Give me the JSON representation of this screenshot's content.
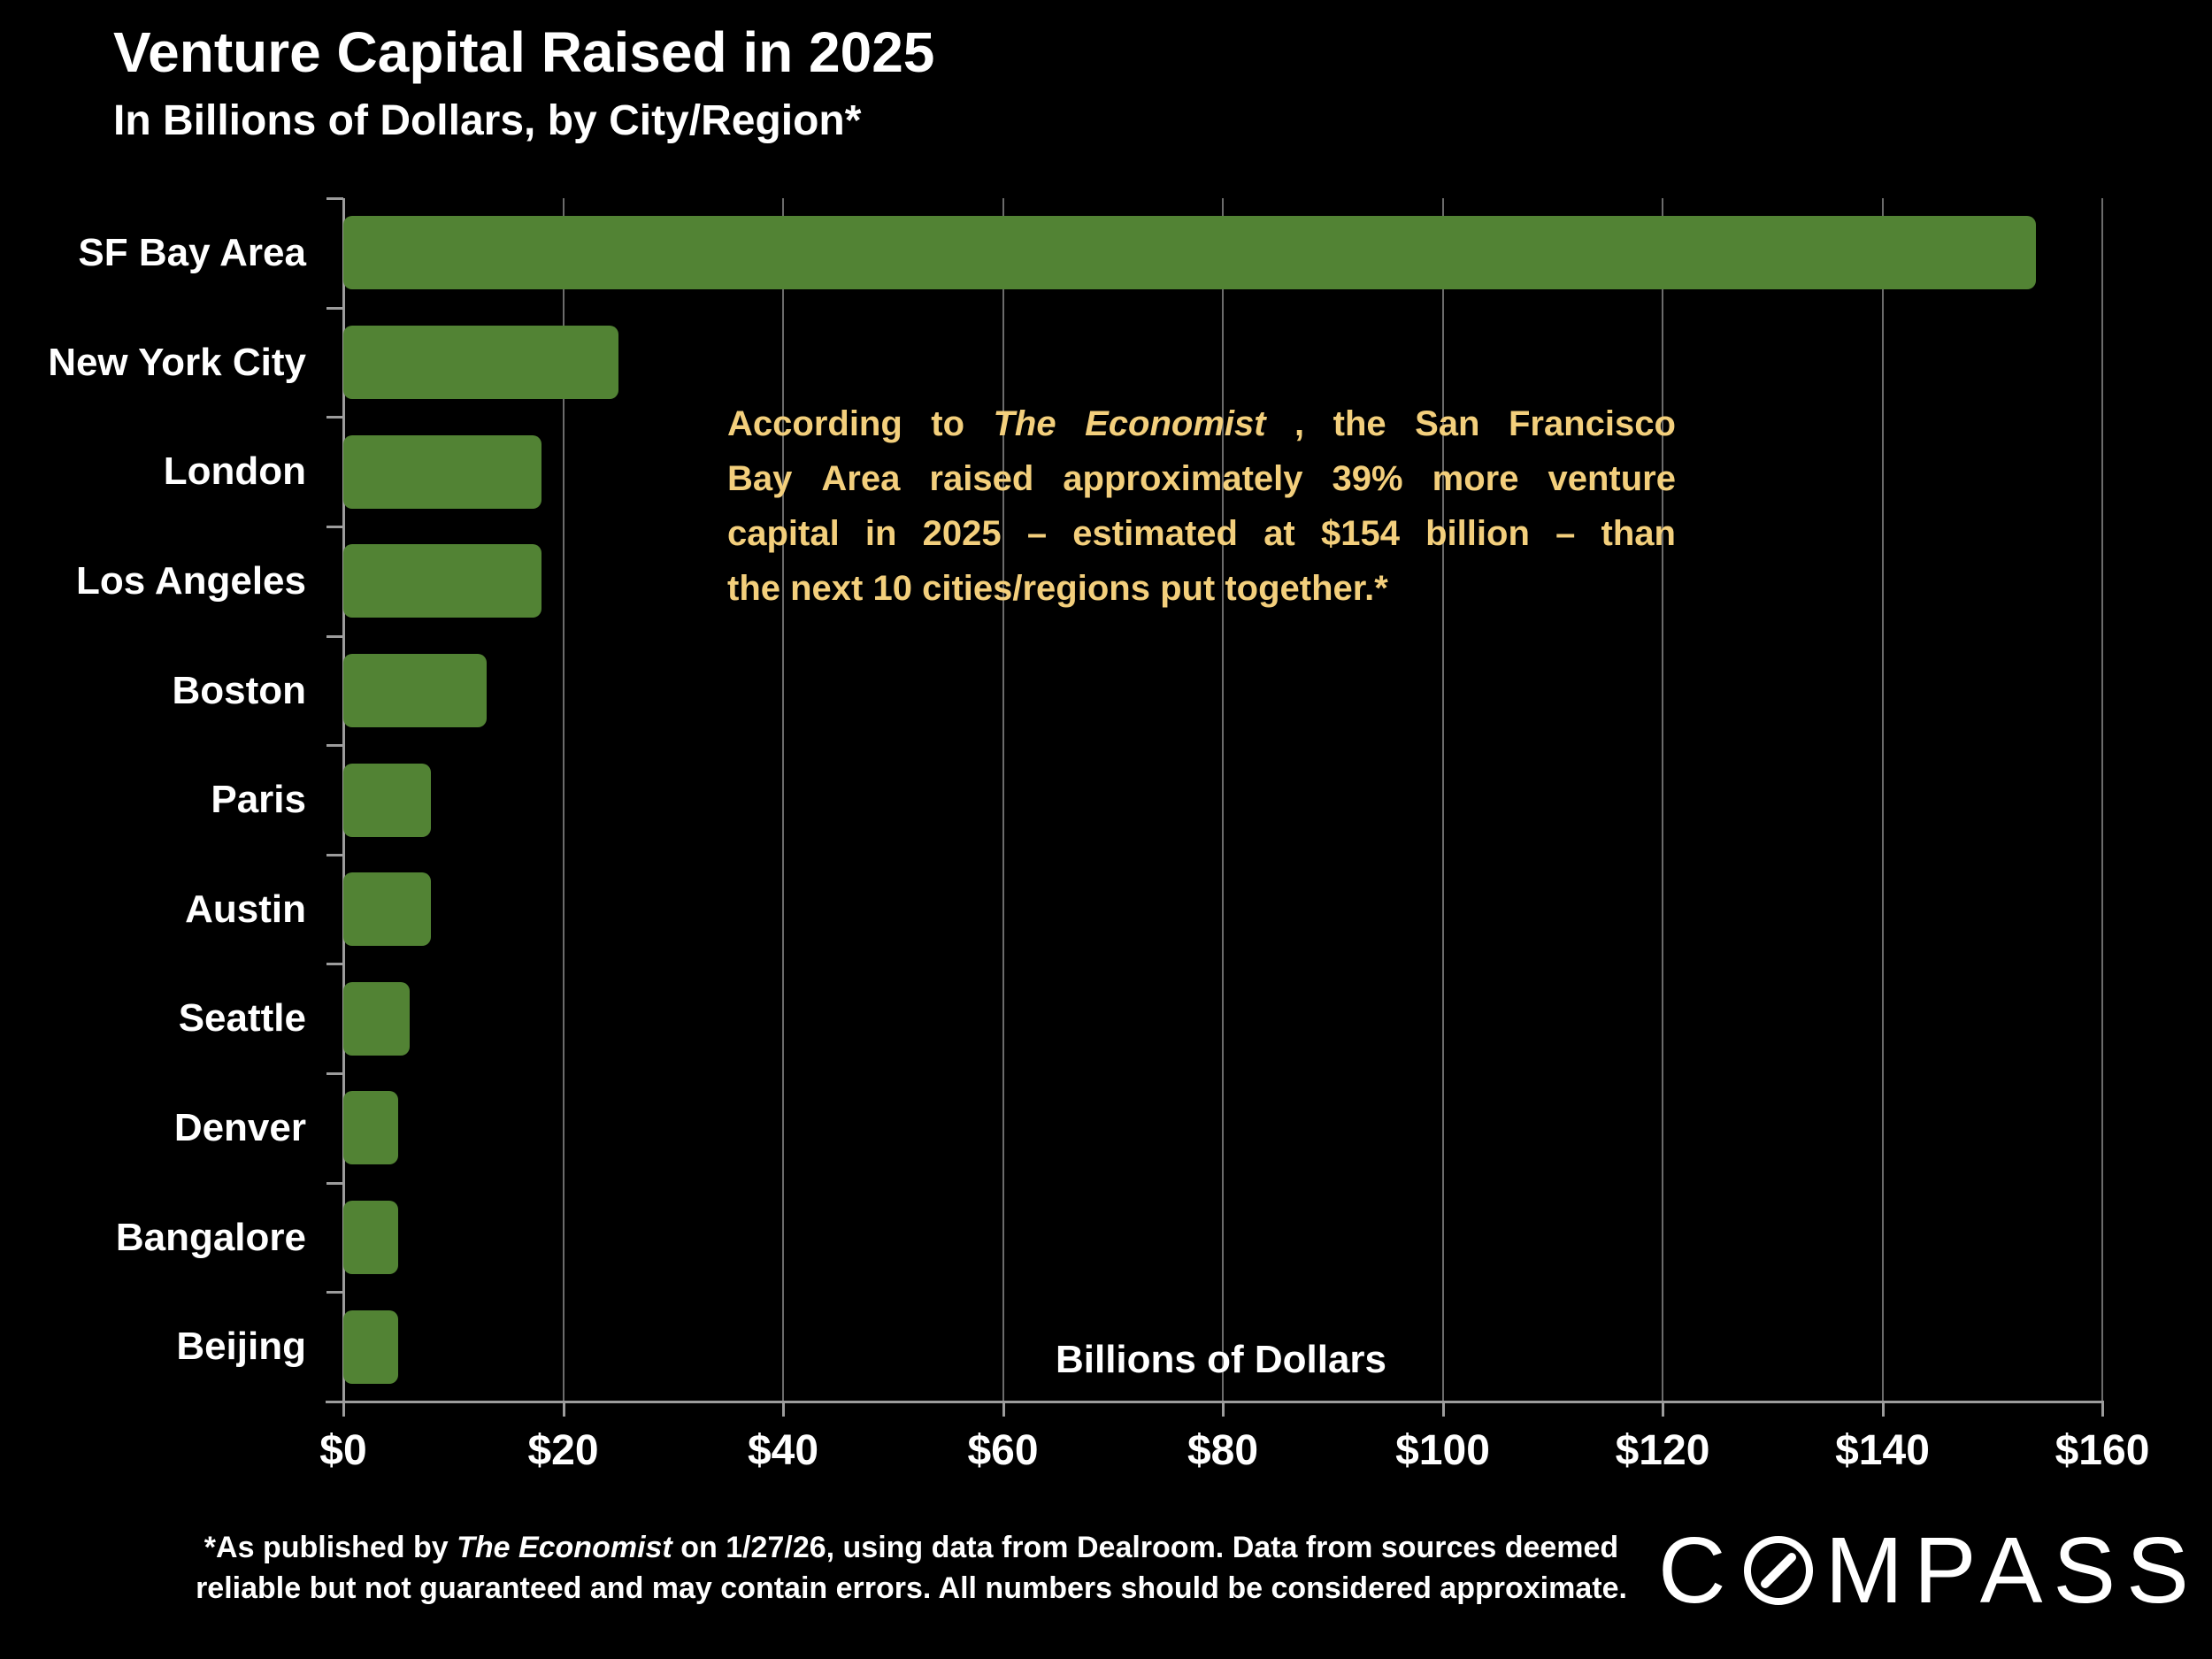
{
  "title": "Venture Capital Raised in 2025",
  "subtitle": "In Billions of Dollars, by City/Region*",
  "chart_data": {
    "type": "bar",
    "orientation": "horizontal",
    "title": "Venture Capital Raised in 2025",
    "subtitle": "In Billions of Dollars, by City/Region*",
    "categories": [
      "SF Bay Area",
      "New York City",
      "London",
      "Los Angeles",
      "Boston",
      "Paris",
      "Austin",
      "Seattle",
      "Denver",
      "Bangalore",
      "Beijing"
    ],
    "values": [
      154,
      25,
      18,
      18,
      13,
      8,
      8,
      6,
      5,
      5,
      5
    ],
    "unit": "billions of dollars",
    "xlabel": "Billions of Dollars",
    "xlim": [
      0,
      160
    ],
    "xtick_interval": 20,
    "xticks": [
      "$0",
      "$20",
      "$40",
      "$60",
      "$80",
      "$100",
      "$120",
      "$140",
      "$160"
    ],
    "grid": "vertical gridlines at each $20",
    "legend": "none",
    "bar_color": "#528334"
  },
  "annotation": {
    "color": "#F3CF7C",
    "lines": [
      {
        "justify": true,
        "segments": [
          {
            "t": "According to "
          },
          {
            "t": "The Economist",
            "i": true
          },
          {
            "t": ", the San Francisco"
          }
        ]
      },
      {
        "justify": true,
        "segments": [
          {
            "t": "Bay Area raised approximately 39% more venture"
          }
        ]
      },
      {
        "justify": true,
        "segments": [
          {
            "t": "capital in 2025 – estimated at $154 billion – than"
          }
        ]
      },
      {
        "justify": false,
        "segments": [
          {
            "t": "the next 10 cities/regions put together.*"
          }
        ]
      }
    ]
  },
  "footnote": {
    "lines": [
      {
        "segments": [
          {
            "t": "*As published by "
          },
          {
            "t": "The Economist",
            "i": true
          },
          {
            "t": " on 1/27/26, using data from Dealroom. Data from sources deemed"
          }
        ]
      },
      {
        "segments": [
          {
            "t": "reliable but not guaranteed and may contain errors. All numbers should be considered approximate."
          }
        ]
      }
    ]
  },
  "logo": {
    "name": "COMPASS",
    "left_text": "C",
    "right_text": "MPASS"
  },
  "colors": {
    "background": "#000000",
    "bar": "#528334",
    "text": "#FFFFFF",
    "accent_text": "#F3CF7C",
    "axis": "#9C9C9C",
    "gridline": "#6B6B6B"
  }
}
